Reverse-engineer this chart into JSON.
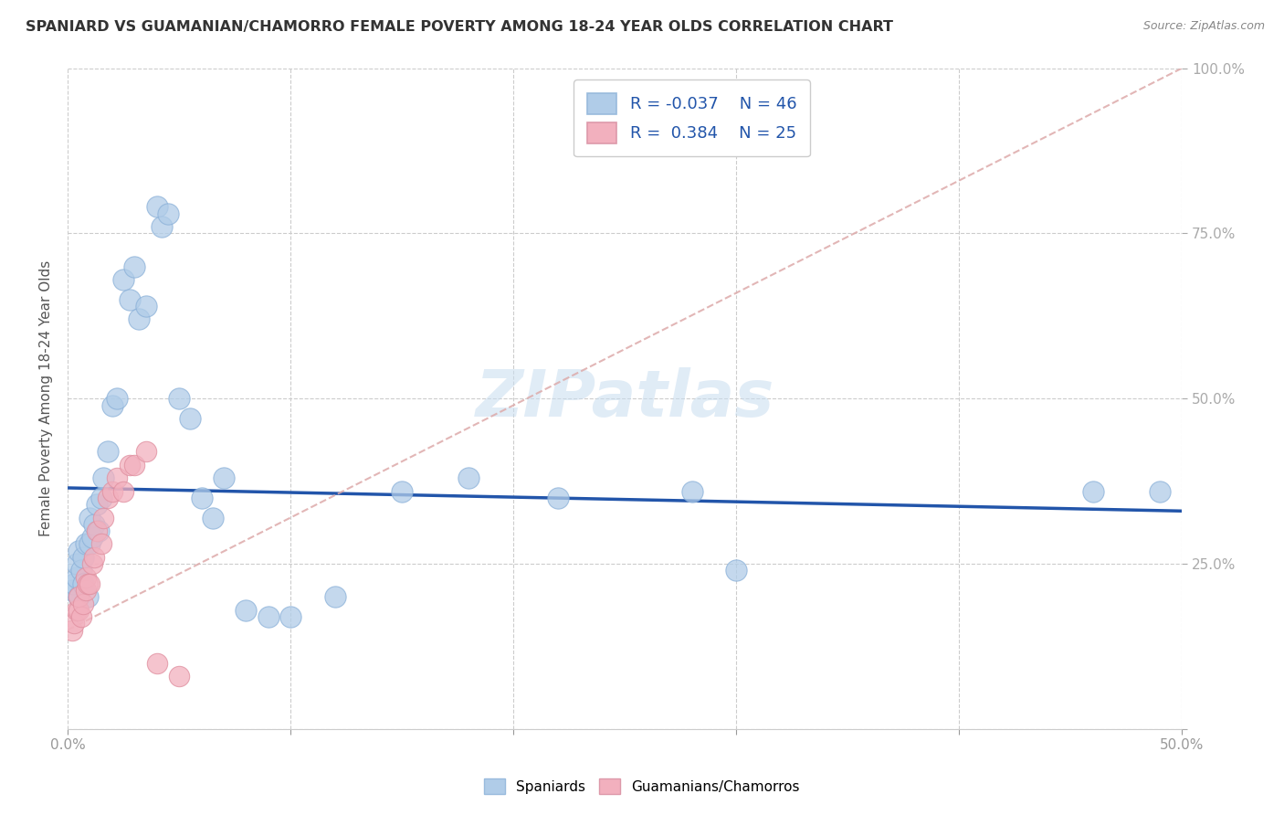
{
  "title": "SPANIARD VS GUAMANIAN/CHAMORRO FEMALE POVERTY AMONG 18-24 YEAR OLDS CORRELATION CHART",
  "source": "Source: ZipAtlas.com",
  "ylabel": "Female Poverty Among 18-24 Year Olds",
  "xlim": [
    0.0,
    0.5
  ],
  "ylim": [
    0.0,
    1.0
  ],
  "xticks": [
    0.0,
    0.1,
    0.2,
    0.3,
    0.4,
    0.5
  ],
  "xticklabels": [
    "0.0%",
    "",
    "",
    "",
    "",
    "50.0%"
  ],
  "yticks": [
    0.0,
    0.25,
    0.5,
    0.75,
    1.0
  ],
  "yticklabels_right": [
    "",
    "25.0%",
    "50.0%",
    "75.0%",
    "100.0%"
  ],
  "legend_R_blue": "-0.037",
  "legend_N_blue": "46",
  "legend_R_pink": "0.384",
  "legend_N_pink": "25",
  "blue_color": "#b0cce8",
  "pink_color": "#f2b0be",
  "blue_line_color": "#2255aa",
  "pink_line_color": "#cc6677",
  "pink_dash_color": "#ddaaaa",
  "watermark": "ZIPatlas",
  "spaniards_x": [
    0.002,
    0.003,
    0.004,
    0.004,
    0.005,
    0.005,
    0.006,
    0.007,
    0.007,
    0.008,
    0.009,
    0.01,
    0.01,
    0.011,
    0.012,
    0.013,
    0.014,
    0.015,
    0.016,
    0.018,
    0.02,
    0.022,
    0.025,
    0.028,
    0.03,
    0.032,
    0.035,
    0.04,
    0.042,
    0.045,
    0.05,
    0.055,
    0.06,
    0.065,
    0.07,
    0.08,
    0.09,
    0.1,
    0.12,
    0.15,
    0.18,
    0.22,
    0.28,
    0.3,
    0.46,
    0.49
  ],
  "spaniards_y": [
    0.21,
    0.22,
    0.23,
    0.25,
    0.2,
    0.27,
    0.24,
    0.22,
    0.26,
    0.28,
    0.2,
    0.28,
    0.32,
    0.29,
    0.31,
    0.34,
    0.3,
    0.35,
    0.38,
    0.42,
    0.49,
    0.5,
    0.68,
    0.65,
    0.7,
    0.62,
    0.64,
    0.79,
    0.76,
    0.78,
    0.5,
    0.47,
    0.35,
    0.32,
    0.38,
    0.18,
    0.17,
    0.17,
    0.2,
    0.36,
    0.38,
    0.35,
    0.36,
    0.24,
    0.36,
    0.36
  ],
  "guamanians_x": [
    0.002,
    0.003,
    0.004,
    0.005,
    0.005,
    0.006,
    0.007,
    0.008,
    0.008,
    0.009,
    0.01,
    0.011,
    0.012,
    0.013,
    0.015,
    0.016,
    0.018,
    0.02,
    0.022,
    0.025,
    0.028,
    0.03,
    0.035,
    0.04,
    0.05
  ],
  "guamanians_y": [
    0.15,
    0.16,
    0.18,
    0.18,
    0.2,
    0.17,
    0.19,
    0.21,
    0.23,
    0.22,
    0.22,
    0.25,
    0.26,
    0.3,
    0.28,
    0.32,
    0.35,
    0.36,
    0.38,
    0.36,
    0.4,
    0.4,
    0.42,
    0.1,
    0.08
  ],
  "blue_trendline_x": [
    0.0,
    0.5
  ],
  "blue_trendline_y": [
    0.365,
    0.33
  ],
  "pink_trendline_x": [
    0.0,
    0.5
  ],
  "pink_trendline_y": [
    0.15,
    1.0
  ]
}
